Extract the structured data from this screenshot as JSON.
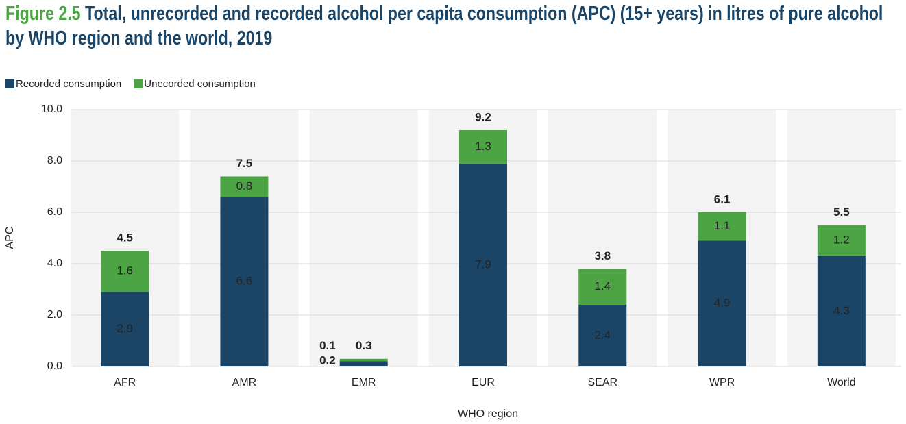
{
  "chart_data": {
    "type": "stacked_bar",
    "figure_label": "Figure 2.5",
    "title": "Total, unrecorded and recorded alcohol per capita consumption (APC) (15+ years) in litres of pure alcohol by WHO region and the world, 2019",
    "x_label": "WHO region",
    "y_label": "APC",
    "categories": [
      "AFR",
      "AMR",
      "EMR",
      "EUR",
      "SEAR",
      "WPR",
      "World"
    ],
    "series": [
      {
        "name": "Recorded consumption",
        "color": "#1b4566",
        "values": [
          2.9,
          6.6,
          0.2,
          7.9,
          2.4,
          4.9,
          4.3
        ]
      },
      {
        "name": "Unecorded consumption",
        "color": "#4ca444",
        "values": [
          1.6,
          0.8,
          0.1,
          1.3,
          1.4,
          1.1,
          1.2
        ]
      }
    ],
    "totals": [
      4.5,
      7.5,
      0.3,
      9.2,
      3.8,
      6.1,
      5.5
    ],
    "ylim": [
      0,
      10
    ],
    "yticks": [
      {
        "value": 0,
        "label": "0.0"
      },
      {
        "value": 2,
        "label": "2.0"
      },
      {
        "value": 4,
        "label": "4.0"
      },
      {
        "value": 6,
        "label": "6.0"
      },
      {
        "value": 8,
        "label": "8.0"
      },
      {
        "value": 10,
        "label": "10.0"
      }
    ],
    "grid": true,
    "legend": "top-left"
  }
}
